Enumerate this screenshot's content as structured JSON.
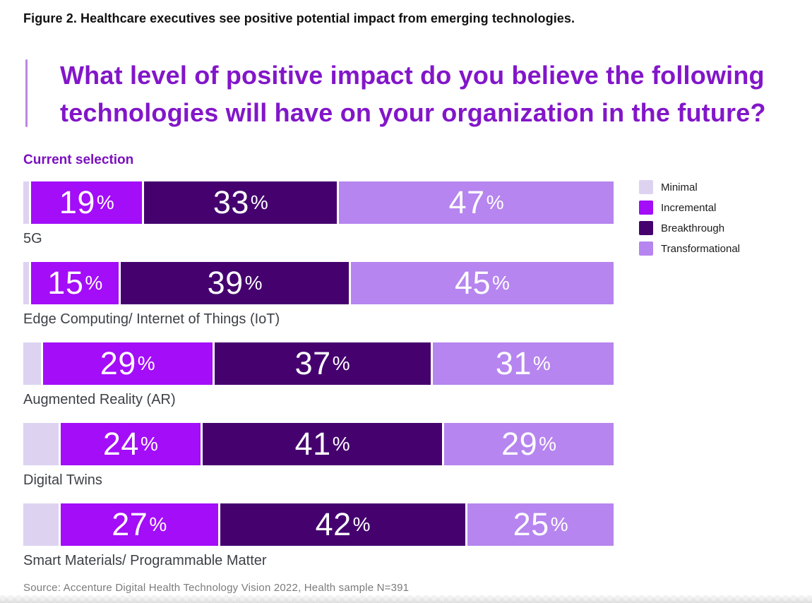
{
  "caption": "Figure 2. Healthcare executives see positive potential impact from emerging technologies.",
  "title": {
    "line1": "What level of positive impact do you believe the following",
    "line2": "technologies will have on your organization in the future?"
  },
  "subheading": "Current selection",
  "source": "Source: Accenture Digital Health Technology Vision 2022, Health sample N=391",
  "colors": {
    "title": "#8216C9",
    "subheading": "#7A10BE",
    "accent_bar": "#BB87E4",
    "minimal": "#DDD3F1",
    "incremental": "#A30DF8",
    "breakthrough": "#45026F",
    "transformational": "#B685EF"
  },
  "chart_data": {
    "type": "bar",
    "orientation": "horizontal-stacked",
    "title": "What level of positive impact do you believe the following technologies will have on your organization in the future?",
    "subtitle": "Current selection",
    "categories": [
      "5G",
      "Edge Computing/ Internet of Things (IoT)",
      "Augmented Reality (AR)",
      "Digital Twins",
      "Smart Materials/ Programmable Matter"
    ],
    "series": [
      {
        "name": "Minimal",
        "color_key": "minimal",
        "labeled": false,
        "values": [
          1,
          1,
          3,
          6,
          6
        ]
      },
      {
        "name": "Incremental",
        "color_key": "incremental",
        "labeled": true,
        "values": [
          19,
          15,
          29,
          24,
          27
        ]
      },
      {
        "name": "Breakthrough",
        "color_key": "breakthrough",
        "labeled": true,
        "values": [
          33,
          39,
          37,
          41,
          42
        ]
      },
      {
        "name": "Transformational",
        "color_key": "transformational",
        "labeled": true,
        "values": [
          47,
          45,
          31,
          29,
          25
        ]
      }
    ],
    "legend": [
      "Minimal",
      "Incremental",
      "Breakthrough",
      "Transformational"
    ],
    "legend_position": "right",
    "value_suffix": "%",
    "xlim": [
      0,
      100
    ],
    "grid": false
  }
}
